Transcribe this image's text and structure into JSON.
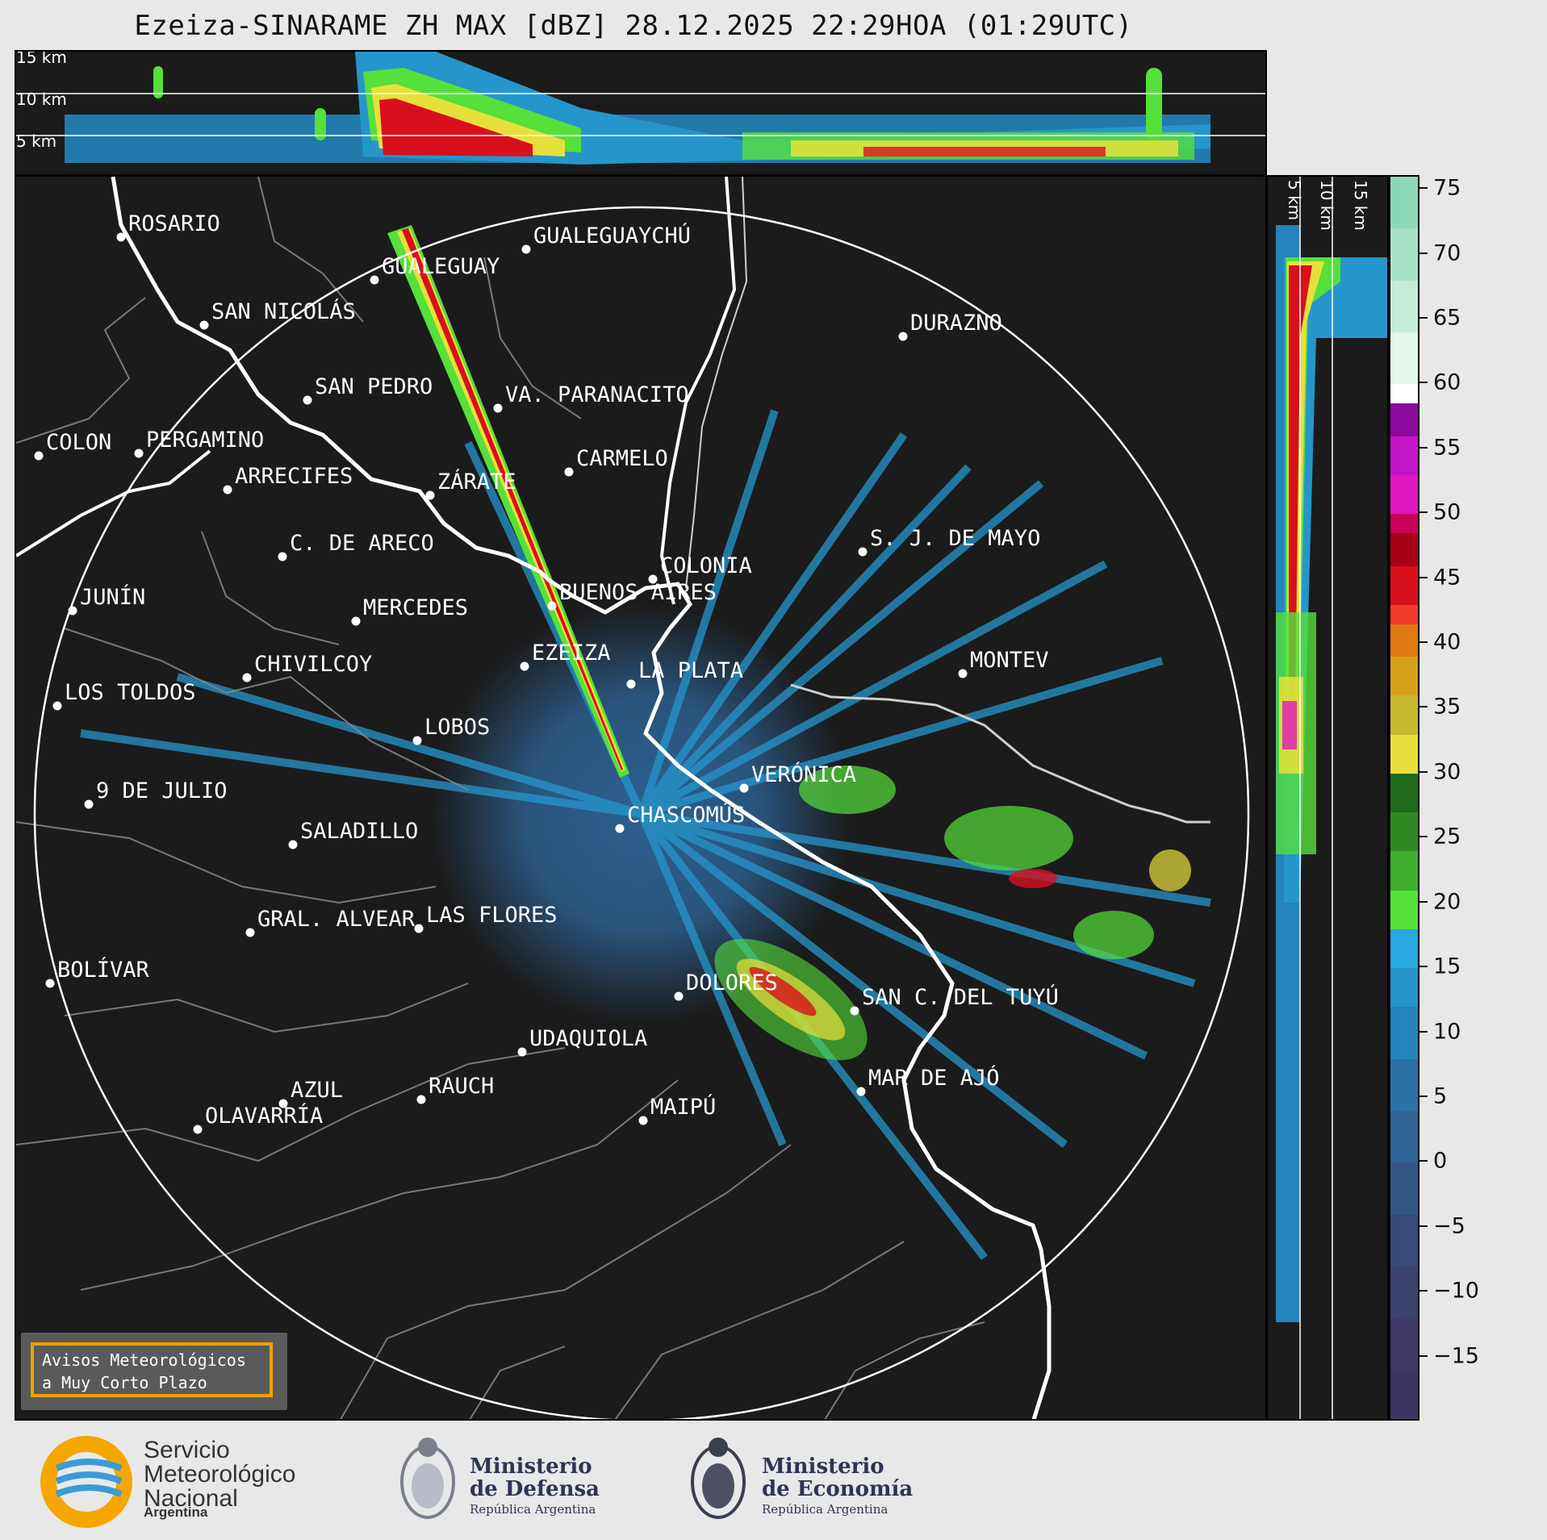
{
  "title": "Ezeiza-SINARAME ZH MAX [dBZ] 28.12.2025 22:29HOA (01:29UTC)",
  "top_panel": {
    "altitude_labels": [
      "15 km",
      "10 km",
      "5 km"
    ]
  },
  "side_panel": {
    "altitude_labels": [
      "5 km",
      "10 km",
      "15 km"
    ]
  },
  "colorbar": {
    "unit": "dBZ",
    "range": [
      -20,
      76
    ],
    "tick_labels": [
      "75",
      "70",
      "65",
      "60",
      "55",
      "50",
      "45",
      "40",
      "35",
      "30",
      "25",
      "20",
      "15",
      "10",
      "5",
      "0",
      "−5",
      "−10",
      "−15"
    ],
    "segments": [
      {
        "from": 72,
        "to": 76,
        "color": "#8ad8b8"
      },
      {
        "from": 68,
        "to": 72,
        "color": "#a6e2c8"
      },
      {
        "from": 64,
        "to": 68,
        "color": "#c4ecd9"
      },
      {
        "from": 60,
        "to": 64,
        "color": "#e2f6ec"
      },
      {
        "from": 58.5,
        "to": 60,
        "color": "#ffffff"
      },
      {
        "from": 56,
        "to": 58.5,
        "color": "#8b0b9c"
      },
      {
        "from": 53,
        "to": 56,
        "color": "#c414c8"
      },
      {
        "from": 50,
        "to": 53,
        "color": "#e018c0"
      },
      {
        "from": 48.5,
        "to": 50,
        "color": "#c8005a"
      },
      {
        "from": 46,
        "to": 48.5,
        "color": "#a80012"
      },
      {
        "from": 43,
        "to": 46,
        "color": "#d8101c"
      },
      {
        "from": 41.5,
        "to": 43,
        "color": "#f03a2a"
      },
      {
        "from": 39,
        "to": 41.5,
        "color": "#e07a10"
      },
      {
        "from": 36,
        "to": 39,
        "color": "#d6a018"
      },
      {
        "from": 33,
        "to": 36,
        "color": "#c8b830"
      },
      {
        "from": 30,
        "to": 33,
        "color": "#e8e03a"
      },
      {
        "from": 27,
        "to": 30,
        "color": "#1f6a1a"
      },
      {
        "from": 24,
        "to": 27,
        "color": "#2f8a24"
      },
      {
        "from": 21,
        "to": 24,
        "color": "#3fae2e"
      },
      {
        "from": 18,
        "to": 21,
        "color": "#55e03a"
      },
      {
        "from": 15,
        "to": 18,
        "color": "#28a8e0"
      },
      {
        "from": 12,
        "to": 15,
        "color": "#2596cc"
      },
      {
        "from": 8,
        "to": 12,
        "color": "#2484bb"
      },
      {
        "from": 4,
        "to": 8,
        "color": "#2a72a8"
      },
      {
        "from": 0,
        "to": 4,
        "color": "#2e6396"
      },
      {
        "from": -4,
        "to": 0,
        "color": "#335687"
      },
      {
        "from": -8,
        "to": -4,
        "color": "#384a7a"
      },
      {
        "from": -12,
        "to": -8,
        "color": "#3c416e"
      },
      {
        "from": -16,
        "to": -12,
        "color": "#3f3a66"
      },
      {
        "from": -20,
        "to": -16,
        "color": "#3e3660"
      }
    ]
  },
  "cities": [
    {
      "name": "ROSARIO"
    },
    {
      "name": "GUALEGUAYCHÚ"
    },
    {
      "name": "GUALEGUAY"
    },
    {
      "name": "SAN NICOLÁS"
    },
    {
      "name": "DURAZNO"
    },
    {
      "name": "SAN PEDRO"
    },
    {
      "name": "VA. PARANACITO"
    },
    {
      "name": "COLON"
    },
    {
      "name": "PERGAMINO"
    },
    {
      "name": "CARMELO"
    },
    {
      "name": "ARRECIFES"
    },
    {
      "name": "ZÁRATE"
    },
    {
      "name": "S. J. DE MAYO"
    },
    {
      "name": "C. DE ARECO"
    },
    {
      "name": "COLONIA"
    },
    {
      "name": "JUNÍN"
    },
    {
      "name": "BUENOS AIRES"
    },
    {
      "name": "MERCEDES"
    },
    {
      "name": "EZEIZA"
    },
    {
      "name": "MONTEV"
    },
    {
      "name": "CHIVILCOY"
    },
    {
      "name": "LA PLATA"
    },
    {
      "name": "LOS TOLDOS"
    },
    {
      "name": "LOBOS"
    },
    {
      "name": "VERÓNICA"
    },
    {
      "name": "9 DE JULIO"
    },
    {
      "name": "CHASCOMÚS"
    },
    {
      "name": "SALADILLO"
    },
    {
      "name": "GRAL. ALVEAR"
    },
    {
      "name": "LAS FLORES"
    },
    {
      "name": "BOLÍVAR"
    },
    {
      "name": "DOLORES"
    },
    {
      "name": "SAN C. DEL TUYÚ"
    },
    {
      "name": "UDAQUIOLA"
    },
    {
      "name": "MAR DE AJÓ"
    },
    {
      "name": "AZUL"
    },
    {
      "name": "RAUCH"
    },
    {
      "name": "OLAVARRÍA"
    },
    {
      "name": "MAIPÚ"
    }
  ],
  "avisos": {
    "line1": "Avisos Meteorológicos",
    "line2": "a Muy Corto Plazo"
  },
  "logos": {
    "smn_line1": "Servicio",
    "smn_line2": "Meteorológico",
    "smn_line3": "Nacional",
    "smn_sub": "Argentina",
    "defensa_line1": "Ministerio",
    "defensa_line2": "de Defensa",
    "defensa_sub": "República Argentina",
    "economia_line1": "Ministerio",
    "economia_line2": "de Economía",
    "economia_sub": "República Argentina",
    "colors": {
      "smn_orange": "#f7a600",
      "smn_blue": "#3a9bd8",
      "ministry_navy": "#2e3552"
    }
  }
}
